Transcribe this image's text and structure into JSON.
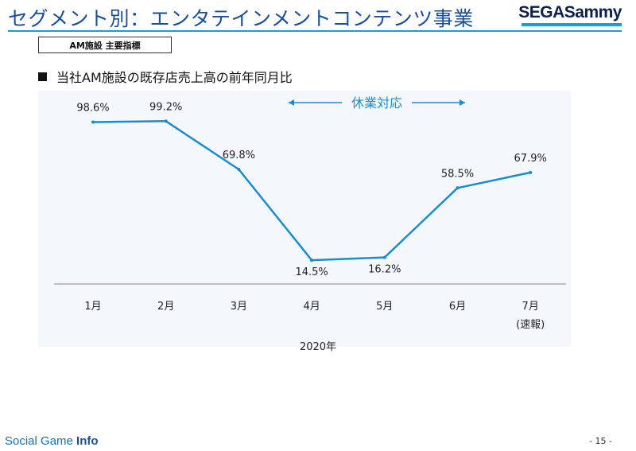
{
  "header": {
    "title": "セグメント別：エンタテインメントコンテンツ事業",
    "logo_text": "SEGASammy"
  },
  "section_tag": "AM施設 主要指標",
  "bullet_text": "当社AM施設の既存店売上高の前年同月比",
  "chart_data": {
    "type": "line",
    "title": "当社AM施設の既存店売上高の前年同月比",
    "categories": [
      "1月",
      "2月",
      "3月",
      "4月",
      "5月",
      "6月",
      "7月"
    ],
    "category_sublabels": [
      "",
      "",
      "",
      "",
      "",
      "",
      "(速報)"
    ],
    "xlabel": "2020年",
    "ylabel": "",
    "series": [
      {
        "values": [
          98.6,
          99.2,
          69.8,
          14.5,
          16.2,
          58.5,
          67.9
        ],
        "labels": [
          "98.6%",
          "99.2%",
          "69.8%",
          "14.5%",
          "16.2%",
          "58.5%",
          "67.9%"
        ]
      }
    ],
    "ylim": [
      0,
      110
    ],
    "grid": false,
    "annotation": {
      "text": "休業対応",
      "span": [
        "4月",
        "6月"
      ]
    },
    "colors": {
      "line": "#1a8ccf",
      "annotation": "#1a8ccf",
      "axis": "#888888"
    }
  },
  "footer": {
    "brand_prefix": "Social Game ",
    "brand_suffix": "Info",
    "page_number": "- 15 -"
  }
}
